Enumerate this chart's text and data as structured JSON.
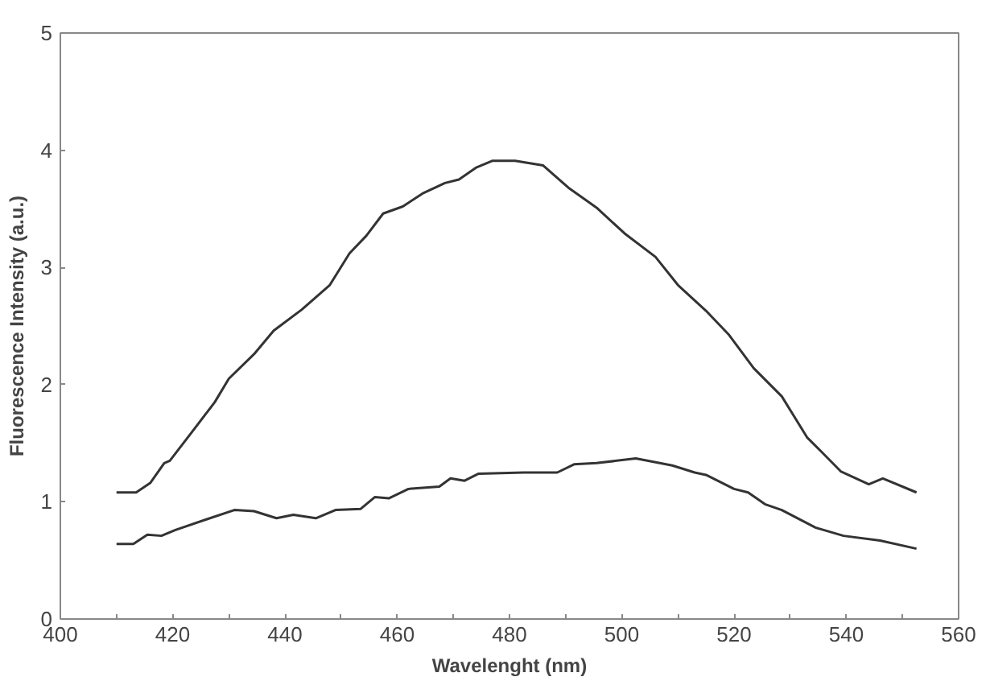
{
  "chart_data": {
    "type": "line",
    "xlabel": "Wavelenght (nm)",
    "ylabel": "Fluorescence Intensity (a.u.)",
    "xlim": [
      400,
      560
    ],
    "ylim": [
      0,
      5
    ],
    "xticks": [
      400,
      {
        "value": 410,
        "label": null
      },
      420,
      {
        "value": 430,
        "label": null
      },
      440,
      {
        "value": 450,
        "label": null
      },
      460,
      {
        "value": 470,
        "label": null
      },
      480,
      {
        "value": 490,
        "label": null
      },
      500,
      {
        "value": 510,
        "label": null
      },
      520,
      {
        "value": 530,
        "label": null
      },
      540,
      {
        "value": 550,
        "label": null
      },
      560
    ],
    "yticks": [
      0,
      1,
      2,
      3,
      4,
      5
    ],
    "grid": false,
    "marker": "none",
    "line_style": "solid",
    "series": [
      {
        "color": "#333333",
        "x": [
          410,
          413.5,
          416,
          418.5,
          419.5,
          423.5,
          427.5,
          430,
          434.5,
          438,
          443,
          448,
          451.5,
          454.5,
          457.5,
          461,
          464.5,
          468.5,
          471,
          474,
          477,
          481,
          486,
          490.5,
          495.5,
          500.5,
          506,
          510,
          515,
          519,
          523.5,
          528.5,
          533,
          535.5,
          539,
          544,
          546.5,
          552.5
        ],
        "values": [
          1.08,
          1.08,
          1.16,
          1.33,
          1.35,
          1.6,
          1.85,
          2.05,
          2.26,
          2.46,
          2.64,
          2.85,
          3.12,
          3.27,
          3.46,
          3.52,
          3.63,
          3.72,
          3.75,
          3.85,
          3.91,
          3.91,
          3.87,
          3.68,
          3.51,
          3.29,
          3.09,
          2.85,
          2.63,
          2.43,
          2.14,
          1.9,
          1.55,
          1.43,
          1.26,
          1.15,
          1.2,
          1.08
        ]
      },
      {
        "color": "#333333",
        "x": [
          410,
          413,
          415.5,
          418,
          420.5,
          426,
          431,
          434.5,
          438.5,
          441.5,
          445.5,
          449,
          453.5,
          456,
          458.5,
          462,
          467.5,
          469.5,
          472,
          474.5,
          482.5,
          488.5,
          491.5,
          495.5,
          502.5,
          509,
          513,
          515,
          520,
          522.5,
          525.5,
          528.5,
          534.5,
          539.5,
          546,
          552.5
        ],
        "values": [
          0.64,
          0.64,
          0.72,
          0.71,
          0.76,
          0.85,
          0.93,
          0.92,
          0.86,
          0.89,
          0.86,
          0.93,
          0.94,
          1.04,
          1.03,
          1.11,
          1.13,
          1.2,
          1.18,
          1.24,
          1.25,
          1.25,
          1.32,
          1.33,
          1.37,
          1.31,
          1.25,
          1.23,
          1.11,
          1.08,
          0.98,
          0.93,
          0.78,
          0.71,
          0.67,
          0.6
        ]
      }
    ]
  }
}
